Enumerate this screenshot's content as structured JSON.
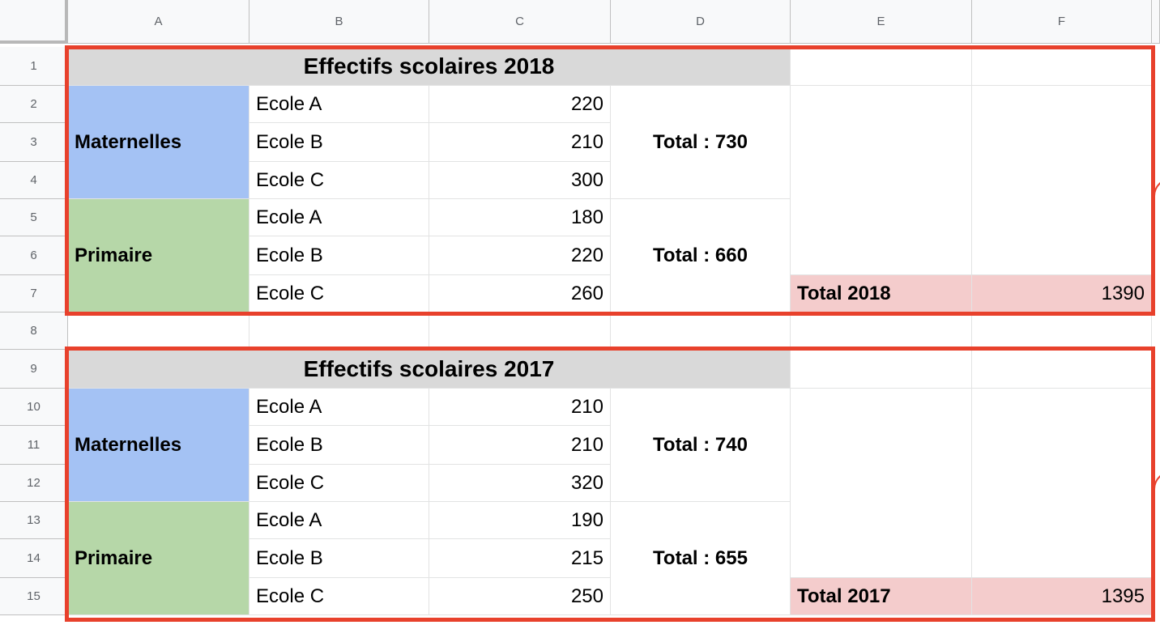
{
  "columns": [
    "A",
    "B",
    "C",
    "D",
    "E",
    "F"
  ],
  "rows": [
    "1",
    "2",
    "3",
    "4",
    "5",
    "6",
    "7",
    "8",
    "9",
    "10",
    "11",
    "12",
    "13",
    "14",
    "15"
  ],
  "block_2018": {
    "title": "Effectifs scolaires 2018",
    "maternelles": {
      "label": "Maternelles",
      "schools": [
        {
          "name": "Ecole A",
          "value": "220"
        },
        {
          "name": "Ecole B",
          "value": "210"
        },
        {
          "name": "Ecole C",
          "value": "300"
        }
      ],
      "total": "Total : 730"
    },
    "primaire": {
      "label": "Primaire",
      "schools": [
        {
          "name": "Ecole A",
          "value": "180"
        },
        {
          "name": "Ecole B",
          "value": "220"
        },
        {
          "name": "Ecole C",
          "value": "260"
        }
      ],
      "total": "Total : 660"
    },
    "grand_total_label": "Total 2018",
    "grand_total_value": "1390"
  },
  "block_2017": {
    "title": "Effectifs scolaires 2017",
    "maternelles": {
      "label": "Maternelles",
      "schools": [
        {
          "name": "Ecole A",
          "value": "210"
        },
        {
          "name": "Ecole B",
          "value": "210"
        },
        {
          "name": "Ecole C",
          "value": "320"
        }
      ],
      "total": "Total : 740"
    },
    "primaire": {
      "label": "Primaire",
      "schools": [
        {
          "name": "Ecole A",
          "value": "190"
        },
        {
          "name": "Ecole B",
          "value": "215"
        },
        {
          "name": "Ecole C",
          "value": "250"
        }
      ],
      "total": "Total : 655"
    },
    "grand_total_label": "Total 2017",
    "grand_total_value": "1395"
  },
  "colors": {
    "title_bg": "#d9d9d9",
    "maternelles_bg": "#a4c2f4",
    "primaire_bg": "#b6d7a8",
    "total_bg": "#f4cccc",
    "highlight_border": "#e8412c"
  }
}
